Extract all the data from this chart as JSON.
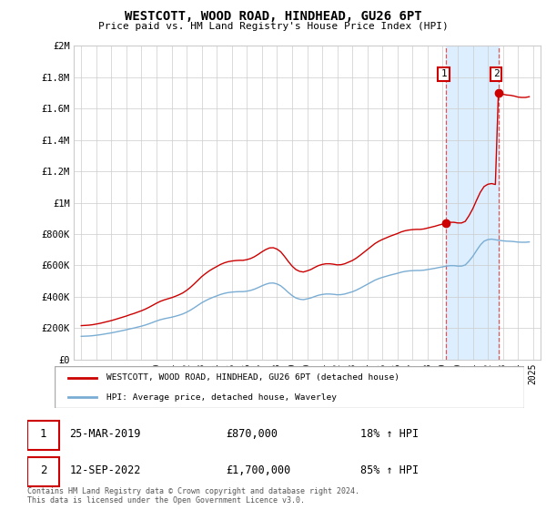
{
  "title": "WESTCOTT, WOOD ROAD, HINDHEAD, GU26 6PT",
  "subtitle": "Price paid vs. HM Land Registry's House Price Index (HPI)",
  "legend_line1": "WESTCOTT, WOOD ROAD, HINDHEAD, GU26 6PT (detached house)",
  "legend_line2": "HPI: Average price, detached house, Waverley",
  "sale1_date": "25-MAR-2019",
  "sale1_price": 870000,
  "sale1_hpi_pct": "18% ↑ HPI",
  "sale1_year": 2019.22,
  "sale2_date": "12-SEP-2022",
  "sale2_price": 1700000,
  "sale2_hpi_pct": "85% ↑ HPI",
  "sale2_year": 2022.7,
  "hpi_color": "#7aadd4",
  "price_color": "#cc0000",
  "shade_color": "#ddeeff",
  "dashed_color": "#dd4444",
  "footer": "Contains HM Land Registry data © Crown copyright and database right 2024.\nThis data is licensed under the Open Government Licence v3.0.",
  "ylim": [
    0,
    2000000
  ],
  "xlim_start": 1994.5,
  "xlim_end": 2025.5,
  "yticks": [
    0,
    200000,
    400000,
    600000,
    800000,
    1000000,
    1200000,
    1400000,
    1600000,
    1800000,
    2000000
  ],
  "ytick_labels": [
    "£0",
    "£200K",
    "£400K",
    "£600K",
    "£800K",
    "£1M",
    "£1.2M",
    "£1.4M",
    "£1.6M",
    "£1.8M",
    "£2M"
  ],
  "xticks": [
    1995,
    1996,
    1997,
    1998,
    1999,
    2000,
    2001,
    2002,
    2003,
    2004,
    2005,
    2006,
    2007,
    2008,
    2009,
    2010,
    2011,
    2012,
    2013,
    2014,
    2015,
    2016,
    2017,
    2018,
    2019,
    2020,
    2021,
    2022,
    2023,
    2024,
    2025
  ],
  "hpi_index": [
    100.0,
    100.7,
    101.4,
    102.7,
    104.7,
    106.8,
    109.5,
    112.2,
    114.9,
    118.2,
    121.6,
    125.0,
    128.4,
    132.4,
    135.8,
    139.9,
    143.9,
    148.6,
    154.1,
    160.1,
    166.2,
    171.6,
    175.7,
    179.1,
    182.4,
    186.5,
    191.2,
    196.6,
    204.1,
    212.8,
    223.0,
    233.8,
    244.6,
    253.4,
    261.5,
    268.2,
    274.3,
    280.4,
    285.1,
    288.5,
    290.5,
    291.9,
    292.6,
    292.6,
    294.6,
    297.9,
    303.2,
    310.1,
    317.6,
    324.3,
    329.1,
    329.8,
    325.7,
    317.6,
    304.1,
    289.2,
    275.7,
    265.5,
    260.1,
    258.1,
    261.5,
    265.5,
    271.6,
    277.0,
    280.4,
    282.4,
    282.4,
    281.1,
    279.1,
    279.7,
    282.4,
    287.2,
    291.9,
    298.6,
    306.8,
    315.5,
    324.3,
    333.1,
    341.9,
    348.6,
    354.1,
    358.8,
    363.5,
    367.6,
    371.6,
    376.4,
    379.7,
    381.8,
    383.1,
    383.8,
    383.8,
    385.1,
    387.8,
    390.5,
    393.2,
    396.6,
    399.3,
    402.7,
    404.7,
    404.7,
    402.7,
    402.7,
    407.4,
    424.3,
    444.6,
    469.6,
    493.2,
    510.1,
    516.9,
    518.9,
    516.2,
    513.5,
    511.5,
    510.1,
    509.5,
    508.1,
    506.1,
    505.4,
    505.4,
    506.8
  ],
  "hpi_times": [
    1995.0,
    1995.25,
    1995.5,
    1995.75,
    1996.0,
    1996.25,
    1996.5,
    1996.75,
    1997.0,
    1997.25,
    1997.5,
    1997.75,
    1998.0,
    1998.25,
    1998.5,
    1998.75,
    1999.0,
    1999.25,
    1999.5,
    1999.75,
    2000.0,
    2000.25,
    2000.5,
    2000.75,
    2001.0,
    2001.25,
    2001.5,
    2001.75,
    2002.0,
    2002.25,
    2002.5,
    2002.75,
    2003.0,
    2003.25,
    2003.5,
    2003.75,
    2004.0,
    2004.25,
    2004.5,
    2004.75,
    2005.0,
    2005.25,
    2005.5,
    2005.75,
    2006.0,
    2006.25,
    2006.5,
    2006.75,
    2007.0,
    2007.25,
    2007.5,
    2007.75,
    2008.0,
    2008.25,
    2008.5,
    2008.75,
    2009.0,
    2009.25,
    2009.5,
    2009.75,
    2010.0,
    2010.25,
    2010.5,
    2010.75,
    2011.0,
    2011.25,
    2011.5,
    2011.75,
    2012.0,
    2012.25,
    2012.5,
    2012.75,
    2013.0,
    2013.25,
    2013.5,
    2013.75,
    2014.0,
    2014.25,
    2014.5,
    2014.75,
    2015.0,
    2015.25,
    2015.5,
    2015.75,
    2016.0,
    2016.25,
    2016.5,
    2016.75,
    2017.0,
    2017.25,
    2017.5,
    2017.75,
    2018.0,
    2018.25,
    2018.5,
    2018.75,
    2019.0,
    2019.25,
    2019.5,
    2019.75,
    2020.0,
    2020.25,
    2020.5,
    2020.75,
    2021.0,
    2021.25,
    2021.5,
    2021.75,
    2022.0,
    2022.25,
    2022.5,
    2022.75,
    2023.0,
    2023.25,
    2023.5,
    2023.75,
    2024.0,
    2024.25,
    2024.5,
    2024.75
  ]
}
